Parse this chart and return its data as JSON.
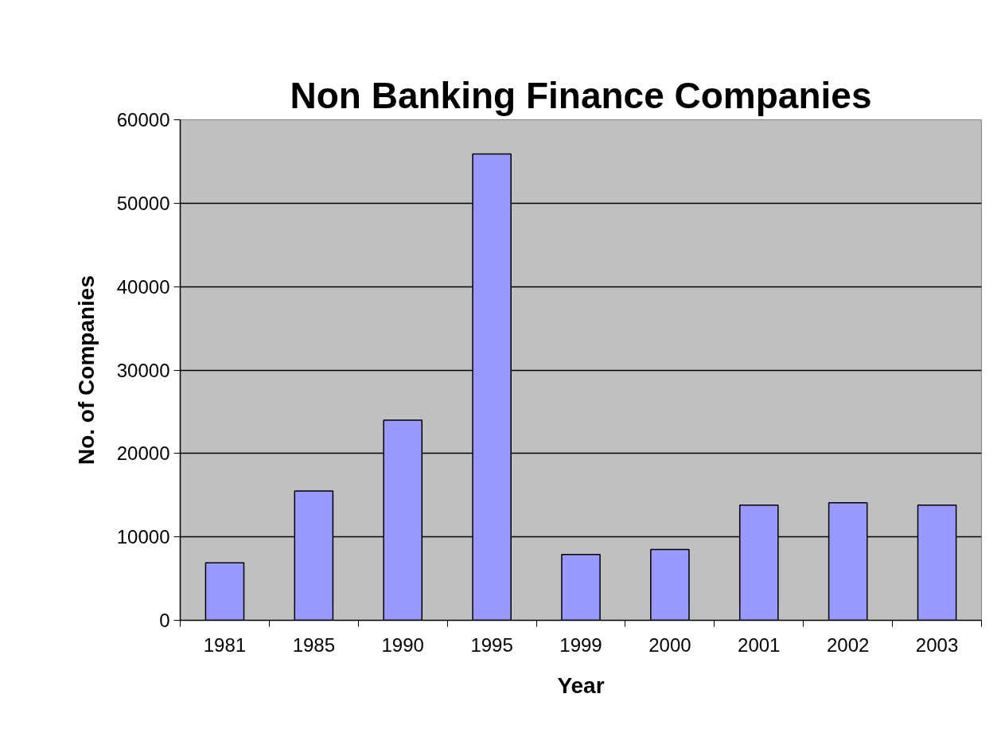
{
  "chart_data": {
    "type": "bar",
    "title": "Non Banking Finance Companies",
    "xlabel": "Year",
    "ylabel": "No. of Companies",
    "categories": [
      "1981",
      "1985",
      "1990",
      "1995",
      "1999",
      "2000",
      "2001",
      "2002",
      "2003"
    ],
    "values": [
      6900,
      15500,
      24000,
      55900,
      7900,
      8500,
      13800,
      14100,
      13800
    ],
    "color": "#9999ff",
    "ylim": [
      0,
      60000
    ],
    "yticks": [
      0,
      10000,
      20000,
      30000,
      40000,
      50000,
      60000
    ],
    "grid": "y"
  }
}
